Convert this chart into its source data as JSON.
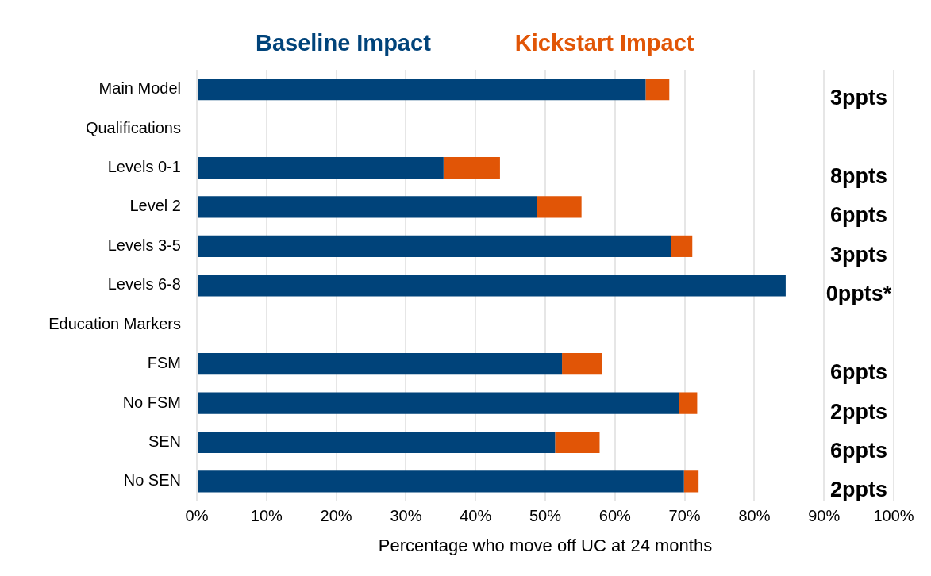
{
  "chart_data": {
    "type": "bar",
    "orientation": "horizontal",
    "stacked": true,
    "xlabel": "Percentage who move off UC at 24 months",
    "categories": [
      "Main Model",
      "Qualifications",
      "Levels 0-1",
      "Level 2",
      "Levels 3-5",
      "Levels 6-8",
      "Education Markers",
      "FSM",
      "No FSM",
      "SEN",
      "No SEN"
    ],
    "series": [
      {
        "name": "Baseline Impact",
        "color": "#00437a",
        "values": [
          64.4,
          null,
          35.4,
          48.8,
          68.0,
          84.5,
          null,
          52.4,
          69.2,
          51.4,
          69.9
        ]
      },
      {
        "name": "Kickstart Impact",
        "color": "#e15506",
        "values": [
          3.4,
          null,
          8.1,
          6.4,
          3.1,
          0,
          null,
          5.7,
          2.6,
          6.4,
          2.1
        ]
      }
    ],
    "annotations": [
      "3ppts",
      "8ppts",
      "6ppts",
      "3ppts",
      "0ppts*",
      "6ppts",
      "2ppts",
      "6ppts",
      "2ppts"
    ],
    "xlim": [
      0,
      100
    ],
    "xticks": [
      {
        "value": 0,
        "label": "0%"
      },
      {
        "value": 10,
        "label": "10%"
      },
      {
        "value": 20,
        "label": "20%"
      },
      {
        "value": 30,
        "label": "30%"
      },
      {
        "value": 40,
        "label": "40%"
      },
      {
        "value": 50,
        "label": "50%"
      },
      {
        "value": 60,
        "label": "60%"
      },
      {
        "value": 70,
        "label": "70%"
      },
      {
        "value": 80,
        "label": "80%"
      },
      {
        "value": 90,
        "label": "90%"
      },
      {
        "value": 100,
        "label": "100%"
      }
    ],
    "grid": "x",
    "legend": "top"
  }
}
